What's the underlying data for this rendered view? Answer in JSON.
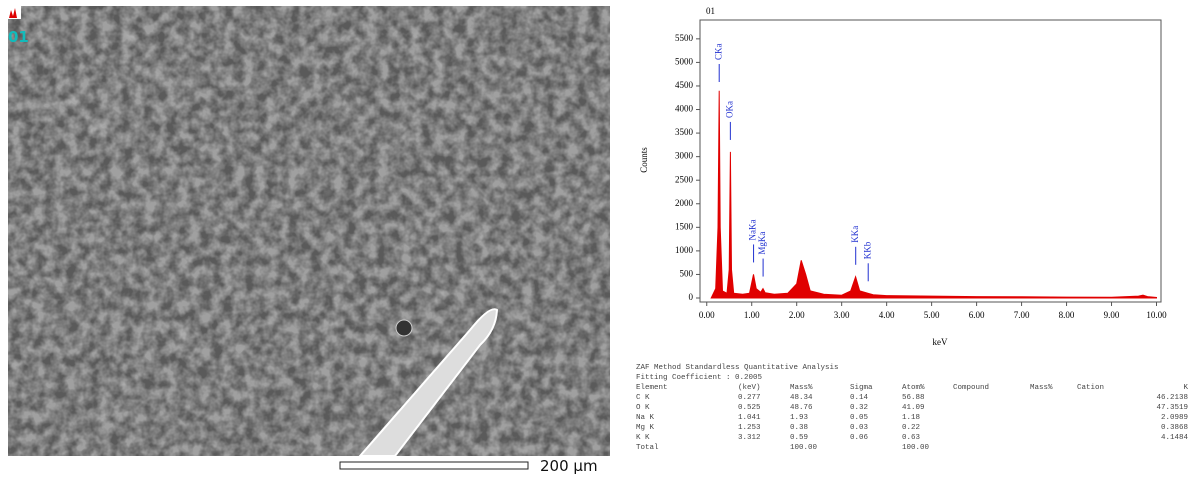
{
  "image": {
    "label": "01",
    "scale_bar": "200 µm"
  },
  "chart_data": {
    "type": "area",
    "title": "01",
    "x_label": "keV",
    "y_label": "Counts",
    "color": "#e00000",
    "x": [
      0.1,
      0.2,
      0.25,
      0.277,
      0.3,
      0.35,
      0.45,
      0.5,
      0.525,
      0.55,
      0.6,
      0.8,
      0.95,
      1.04,
      1.1,
      1.2,
      1.25,
      1.3,
      1.5,
      1.8,
      2.0,
      2.1,
      2.2,
      2.3,
      2.6,
      3.0,
      3.2,
      3.31,
      3.4,
      3.59,
      3.7,
      4.0,
      5.0,
      6.0,
      7.0,
      8.0,
      9.0,
      9.6,
      9.7,
      9.8,
      10.0
    ],
    "values": [
      0,
      200,
      1500,
      4400,
      1500,
      150,
      100,
      600,
      3100,
      600,
      100,
      80,
      100,
      500,
      200,
      120,
      200,
      110,
      80,
      100,
      300,
      800,
      500,
      150,
      80,
      60,
      150,
      450,
      150,
      100,
      70,
      50,
      40,
      30,
      25,
      20,
      15,
      40,
      60,
      30,
      10
    ],
    "xlim": [
      -0.15,
      10.1
    ],
    "ylim": [
      0,
      5900
    ],
    "xticks": [
      {
        "value": 0,
        "label": "0.00"
      },
      {
        "value": 1,
        "label": "1.00"
      },
      {
        "value": 2,
        "label": "2.00"
      },
      {
        "value": 3,
        "label": "3.00"
      },
      {
        "value": 4,
        "label": "4.00"
      },
      {
        "value": 5,
        "label": "5.00"
      },
      {
        "value": 6,
        "label": "6.00"
      },
      {
        "value": 7,
        "label": "7.00"
      },
      {
        "value": 8,
        "label": "8.00"
      },
      {
        "value": 9,
        "label": "9.00"
      },
      {
        "value": 10,
        "label": "10.00"
      }
    ],
    "yticks": [
      0,
      500,
      1000,
      1500,
      2000,
      2500,
      3000,
      3500,
      4000,
      4500,
      5000,
      5500
    ],
    "annotations": [
      {
        "label": "CKa",
        "x": 0.277
      },
      {
        "label": "OKa",
        "x": 0.525
      },
      {
        "label": "NaKa",
        "x": 1.041
      },
      {
        "label": "MgKa",
        "x": 1.253
      },
      {
        "label": "KKa",
        "x": 3.312
      },
      {
        "label": "KKb",
        "x": 3.59
      }
    ],
    "annotation_color": "#2030d0"
  },
  "table": {
    "title": "ZAF Method Standardless Quantitative Analysis",
    "fitting": "Fitting Coefficient : 0.2005",
    "header": [
      "Element",
      "(keV)",
      "Mass%",
      "Sigma",
      "Atom%",
      "Compound",
      "Mass%",
      "Cation",
      "K"
    ],
    "rows": [
      [
        "C K",
        "0.277",
        "48.34",
        "0.14",
        "56.88",
        "46.2138"
      ],
      [
        "O K",
        "0.525",
        "48.76",
        "0.32",
        "41.09",
        "47.3519"
      ],
      [
        "Na K",
        "1.041",
        "1.93",
        "0.05",
        "1.18",
        "2.0989"
      ],
      [
        "Mg K",
        "1.253",
        "0.38",
        "0.03",
        "0.22",
        "0.3868"
      ],
      [
        "K K",
        "3.312",
        "0.59",
        "0.06",
        "0.63",
        "4.1484"
      ]
    ],
    "total": {
      "label": "Total",
      "mass": "100.00",
      "atom": "100.00"
    }
  }
}
